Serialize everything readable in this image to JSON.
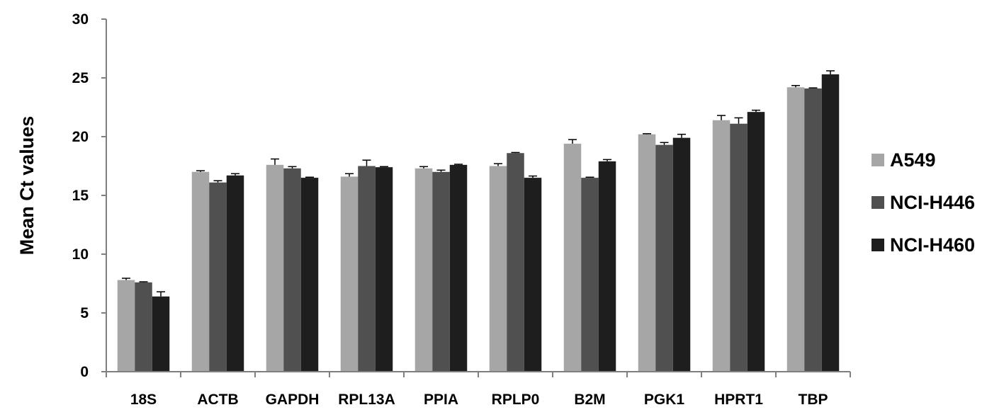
{
  "chart_data": {
    "type": "bar",
    "title": "",
    "xlabel": "",
    "ylabel": "Mean Ct values",
    "ylim": [
      0,
      30
    ],
    "yticks": [
      0,
      5,
      10,
      15,
      20,
      25,
      30
    ],
    "grid": false,
    "legend_position": "right",
    "categories": [
      "18S",
      "ACTB",
      "GAPDH",
      "RPL13A",
      "PPIA",
      "RPLP0",
      "B2M",
      "PGK1",
      "HPRT1",
      "TBP"
    ],
    "series": [
      {
        "name": "A549",
        "color": "#a6a6a6",
        "values": [
          7.8,
          17.0,
          17.6,
          16.6,
          17.3,
          17.5,
          19.4,
          20.2,
          21.4,
          24.2
        ],
        "errors": [
          0.15,
          0.1,
          0.5,
          0.25,
          0.15,
          0.2,
          0.35,
          0.05,
          0.4,
          0.15
        ]
      },
      {
        "name": "NCI-H446",
        "color": "#505050",
        "values": [
          7.6,
          16.1,
          17.3,
          17.5,
          17.0,
          18.6,
          16.5,
          19.3,
          21.1,
          24.1
        ],
        "errors": [
          0.05,
          0.15,
          0.15,
          0.5,
          0.15,
          0.05,
          0.05,
          0.2,
          0.5,
          0.05
        ]
      },
      {
        "name": "NCI-H460",
        "color": "#1e1e1e",
        "values": [
          6.4,
          16.7,
          16.5,
          17.4,
          17.6,
          16.5,
          17.9,
          19.9,
          22.1,
          25.3
        ],
        "errors": [
          0.4,
          0.15,
          0.05,
          0.05,
          0.05,
          0.15,
          0.15,
          0.3,
          0.15,
          0.3
        ]
      }
    ]
  }
}
